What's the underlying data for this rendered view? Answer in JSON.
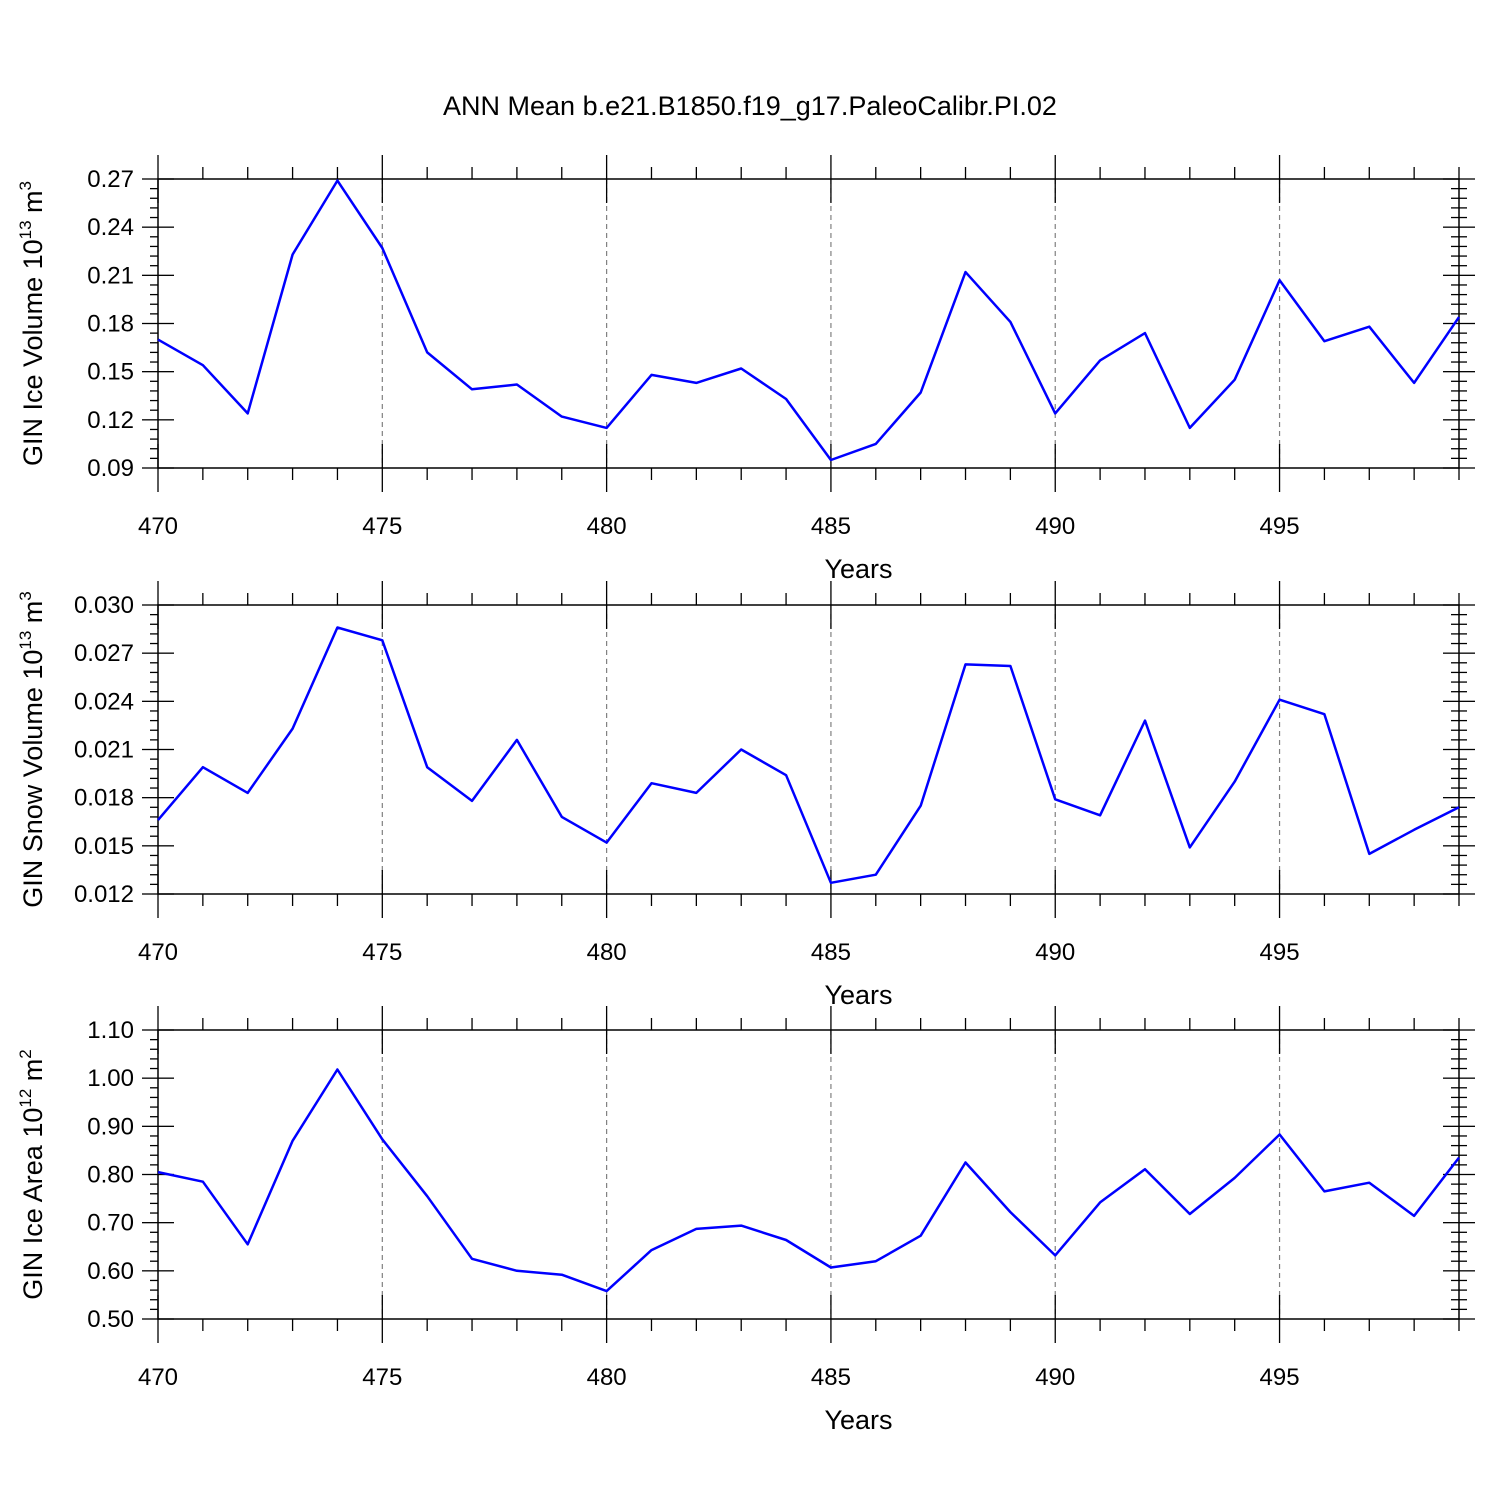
{
  "title": "ANN Mean b.e21.B1850.f19_g17.PaleoCalibr.PI.02",
  "line_color": "#0000ff",
  "chart_data": [
    {
      "type": "line",
      "ylabel": "GIN Ice Volume 10",
      "ylabel_exp": "13",
      "ylabel_unit": " m",
      "ylabel_unit_exp": "3",
      "xlabel": "Years",
      "xlim": [
        470,
        499
      ],
      "ylim": [
        0.09,
        0.27
      ],
      "x_ticks": [
        470,
        475,
        480,
        485,
        490,
        495
      ],
      "y_ticks": [
        "0.09",
        "0.12",
        "0.15",
        "0.18",
        "0.21",
        "0.24",
        "0.27"
      ],
      "grid": "dashed vertical at major x ticks",
      "x": [
        470,
        471,
        472,
        473,
        474,
        475,
        476,
        477,
        478,
        479,
        480,
        481,
        482,
        483,
        484,
        485,
        486,
        487,
        488,
        489,
        490,
        491,
        492,
        493,
        494,
        495,
        496,
        497,
        498,
        499
      ],
      "values": [
        0.17,
        0.154,
        0.124,
        0.223,
        0.269,
        0.227,
        0.162,
        0.139,
        0.142,
        0.122,
        0.115,
        0.148,
        0.143,
        0.152,
        0.133,
        0.095,
        0.105,
        0.137,
        0.212,
        0.181,
        0.124,
        0.157,
        0.174,
        0.115,
        0.145,
        0.207,
        0.169,
        0.178,
        0.143,
        0.184
      ]
    },
    {
      "type": "line",
      "ylabel": "GIN Snow Volume 10",
      "ylabel_exp": "13",
      "ylabel_unit": " m",
      "ylabel_unit_exp": "3",
      "xlabel": "Years",
      "xlim": [
        470,
        499
      ],
      "ylim": [
        0.012,
        0.03
      ],
      "x_ticks": [
        470,
        475,
        480,
        485,
        490,
        495
      ],
      "y_ticks": [
        "0.012",
        "0.015",
        "0.018",
        "0.021",
        "0.024",
        "0.027",
        "0.030"
      ],
      "grid": "dashed vertical at major x ticks",
      "x": [
        470,
        471,
        472,
        473,
        474,
        475,
        476,
        477,
        478,
        479,
        480,
        481,
        482,
        483,
        484,
        485,
        486,
        487,
        488,
        489,
        490,
        491,
        492,
        493,
        494,
        495,
        496,
        497,
        498,
        499
      ],
      "values": [
        0.0166,
        0.0199,
        0.0183,
        0.0223,
        0.0286,
        0.0278,
        0.0199,
        0.0178,
        0.0216,
        0.0168,
        0.0152,
        0.0189,
        0.0183,
        0.021,
        0.0194,
        0.0127,
        0.0132,
        0.0175,
        0.0263,
        0.0262,
        0.0179,
        0.0169,
        0.0228,
        0.0149,
        0.019,
        0.0241,
        0.0232,
        0.0145,
        0.016,
        0.0174
      ]
    },
    {
      "type": "line",
      "ylabel": "GIN Ice Area 10",
      "ylabel_exp": "12",
      "ylabel_unit": " m",
      "ylabel_unit_exp": "2",
      "xlabel": "Years",
      "xlim": [
        470,
        499
      ],
      "ylim": [
        0.5,
        1.1
      ],
      "x_ticks": [
        470,
        475,
        480,
        485,
        490,
        495
      ],
      "y_ticks": [
        "0.50",
        "0.60",
        "0.70",
        "0.80",
        "0.90",
        "1.00",
        "1.10"
      ],
      "grid": "dashed vertical at major x ticks",
      "x": [
        470,
        471,
        472,
        473,
        474,
        475,
        476,
        477,
        478,
        479,
        480,
        481,
        482,
        483,
        484,
        485,
        486,
        487,
        488,
        489,
        490,
        491,
        492,
        493,
        494,
        495,
        496,
        497,
        498,
        499
      ],
      "values": [
        0.805,
        0.785,
        0.655,
        0.87,
        1.018,
        0.873,
        0.755,
        0.625,
        0.6,
        0.592,
        0.558,
        0.643,
        0.687,
        0.694,
        0.664,
        0.607,
        0.62,
        0.673,
        0.825,
        0.722,
        0.632,
        0.742,
        0.811,
        0.718,
        0.793,
        0.883,
        0.765,
        0.783,
        0.714,
        0.835
      ]
    }
  ]
}
